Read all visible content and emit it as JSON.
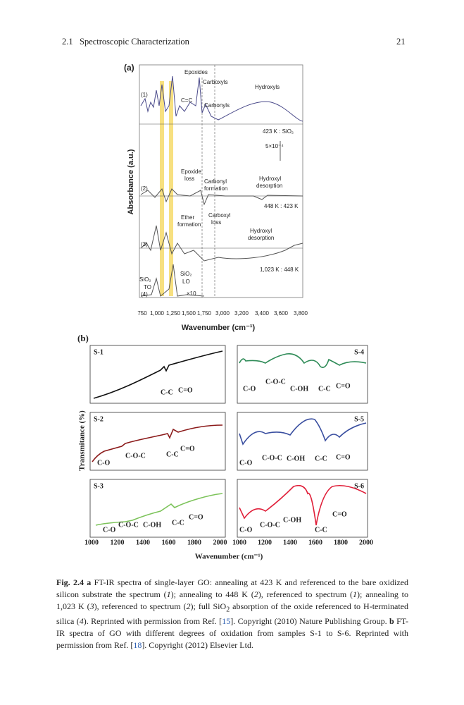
{
  "header": {
    "section": "2.1",
    "title": "Spectroscopic Characterization",
    "page": "21"
  },
  "figure_a": {
    "label": "(a)",
    "y_axis_label": "Absorbance (a.u.)",
    "x_axis_label": "Wavenumber (cm⁻¹)",
    "x_ticks": [
      "750",
      "1,000",
      "1,250",
      "1,500",
      "1,750",
      "3,000",
      "3,200",
      "3,400",
      "3,600",
      "3,800"
    ],
    "annotations": [
      "Epoxides",
      "Carboxyls",
      "Hydroxyls",
      "C=C",
      "Carbonyls",
      "(1)",
      "423 K : SiO₂",
      "5×10⁻⁴",
      "Epoxide",
      "loss",
      "Carbonyl",
      "formation",
      "Hydroxyl",
      "desorption",
      "(2)",
      "448 K : 423 K",
      "Ether",
      "formation",
      "Carboxyl",
      "loss",
      "Hydroxyl",
      "desorption",
      "(3)",
      "1,023 K : 448 K",
      "SiO₂",
      "TO",
      "SiO₂",
      "LO",
      "(4)",
      "×10"
    ]
  },
  "figure_b": {
    "label": "(b)",
    "y_axis_label": "Transmitance (%)",
    "x_axis_label": "Wavenumber (cm⁻¹)",
    "x_ticks_left": [
      "1000",
      "1200",
      "1400",
      "1600",
      "1800",
      "2000"
    ],
    "x_ticks_right": [
      "1000",
      "1200",
      "1400",
      "1600",
      "1800",
      "2000"
    ],
    "panels": [
      {
        "name": "S-1",
        "color": "#111111",
        "peaks": [
          "C-C",
          "C=O"
        ]
      },
      {
        "name": "S-2",
        "color": "#8b1a1a",
        "peaks": [
          "C-O",
          "C-O-C",
          "C-C",
          "C=O"
        ]
      },
      {
        "name": "S-3",
        "color": "#7cc35a",
        "peaks": [
          "C-O",
          "C-O-C",
          "C-OH",
          "C-C",
          "C=O"
        ]
      },
      {
        "name": "S-4",
        "color": "#2e8b57",
        "peaks": [
          "C-O",
          "C-O-C",
          "C-OH",
          "C-C",
          "C=O"
        ]
      },
      {
        "name": "S-5",
        "color": "#3a4fa0",
        "peaks": [
          "C-O",
          "C-O-C",
          "C-OH",
          "C-C",
          "C=O"
        ]
      },
      {
        "name": "S-6",
        "color": "#e0203a",
        "peaks": [
          "C-O",
          "C-O-C",
          "C-OH",
          "C-C",
          "C=O"
        ]
      }
    ]
  },
  "caption": {
    "runs": [
      "Fig. 2.4",
      "a",
      " FT-IR spectra of single-layer GO: annealing at 423 K and referenced to the bare oxidized silicon substrate the spectrum (",
      "1",
      "); annealing to 448 K (",
      "2",
      "), referenced to spectrum (",
      "1",
      "); annealing to 1,023 K (",
      "3",
      "), referenced to spectrum (",
      "2",
      "); full SiO",
      "2",
      " absorption of the oxide referenced to H-terminated silica (",
      "4",
      "). Reprinted with permission from Ref. [",
      "15",
      "]. Copyright (2010) Nature Publishing Group. ",
      "b",
      " FT-IR spectra of GO with different degrees of oxidation from samples S-1 to S-6. Reprinted with permission from Ref. [",
      "18",
      "]. Copyright (2012) Elsevier Ltd."
    ]
  }
}
